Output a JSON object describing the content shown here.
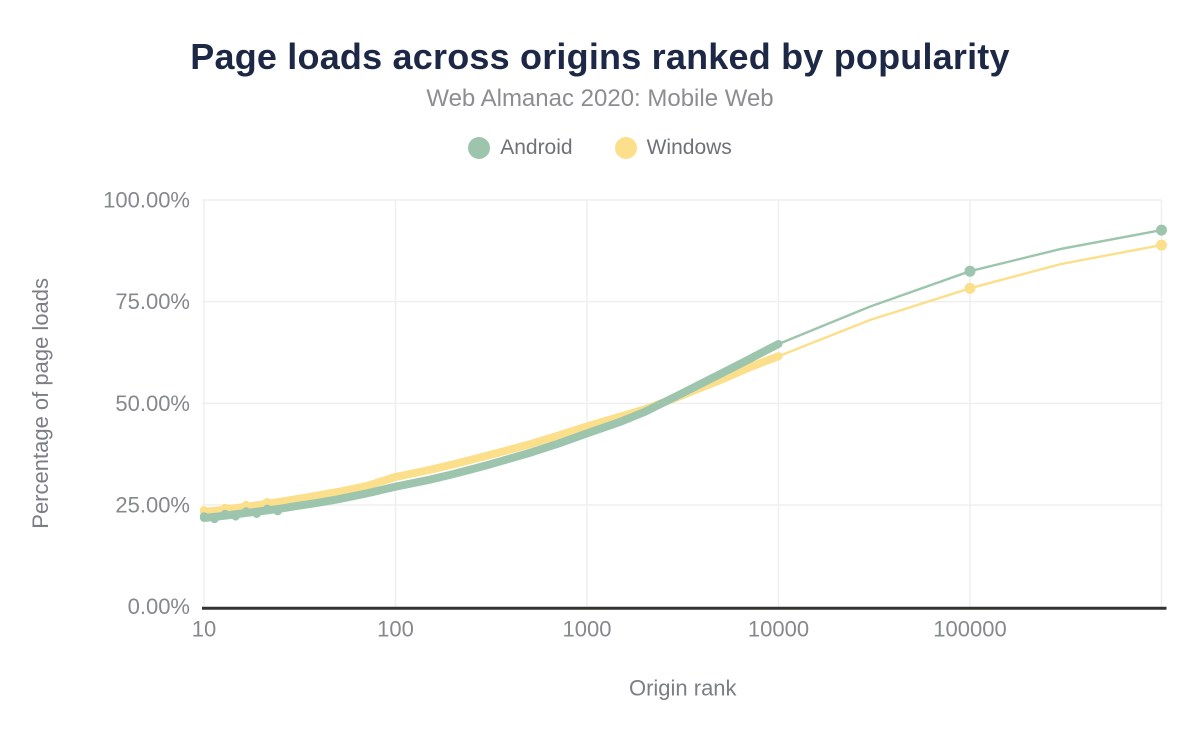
{
  "header": {
    "title": "Page loads across origins ranked by popularity",
    "subtitle": "Web Almanac 2020: Mobile Web"
  },
  "legend": {
    "items": [
      {
        "label": "Android",
        "color": "#9dc5ae"
      },
      {
        "label": "Windows",
        "color": "#fbdf8b"
      }
    ]
  },
  "colors": {
    "title": "#1c2845",
    "subtitle": "#8b8d90",
    "tick_label": "#85888c",
    "axis_title": "#7b7e84",
    "gridline": "#efefef",
    "axis_line": "#333333",
    "android": "#9dc5ae",
    "windows": "#fbdf8b"
  },
  "chart_data": {
    "type": "line",
    "title": "Page loads across origins ranked by popularity",
    "subtitle": "Web Almanac 2020: Mobile Web",
    "xlabel": "Origin rank",
    "ylabel": "Percentage of page loads",
    "x_scale": "log",
    "xlim": [
      10,
      1000000
    ],
    "ylim": [
      0,
      100
    ],
    "grid": true,
    "legend_position": "top",
    "x_ticks": [
      {
        "value": 10,
        "label": "10"
      },
      {
        "value": 100,
        "label": "100"
      },
      {
        "value": 1000,
        "label": "1000"
      },
      {
        "value": 10000,
        "label": "10000"
      },
      {
        "value": 100000,
        "label": "100000"
      }
    ],
    "y_ticks": [
      {
        "value": 0,
        "label": "0.00%"
      },
      {
        "value": 25,
        "label": "25.00%"
      },
      {
        "value": 50,
        "label": "50.00%"
      },
      {
        "value": 75,
        "label": "75.00%"
      },
      {
        "value": 100,
        "label": "100.00%"
      }
    ],
    "series": [
      {
        "name": "Windows",
        "color": "#fbdf8b",
        "thick_max_rank": 10000,
        "marker_ranks": [
          100000,
          1000000
        ],
        "points": [
          [
            10,
            23.3
          ],
          [
            12,
            23.7
          ],
          [
            15,
            24.3
          ],
          [
            20,
            25.1
          ],
          [
            25,
            25.8
          ],
          [
            30,
            26.4
          ],
          [
            40,
            27.4
          ],
          [
            50,
            28.2
          ],
          [
            70,
            29.6
          ],
          [
            100,
            31.9
          ],
          [
            150,
            33.6
          ],
          [
            200,
            35.0
          ],
          [
            300,
            37.1
          ],
          [
            500,
            39.9
          ],
          [
            700,
            42.0
          ],
          [
            1000,
            44.3
          ],
          [
            1500,
            46.8
          ],
          [
            2000,
            48.5
          ],
          [
            3000,
            51.6
          ],
          [
            5000,
            55.8
          ],
          [
            7000,
            58.8
          ],
          [
            10000,
            61.6
          ],
          [
            30000,
            70.5
          ],
          [
            100000,
            78.3
          ],
          [
            300000,
            84.3
          ],
          [
            1000000,
            88.9
          ]
        ]
      },
      {
        "name": "Android",
        "color": "#9dc5ae",
        "thick_max_rank": 10000,
        "marker_ranks": [
          100000,
          1000000
        ],
        "points": [
          [
            10,
            21.8
          ],
          [
            12,
            22.2
          ],
          [
            15,
            22.8
          ],
          [
            20,
            23.5
          ],
          [
            25,
            24.1
          ],
          [
            30,
            24.7
          ],
          [
            40,
            25.6
          ],
          [
            50,
            26.4
          ],
          [
            70,
            27.8
          ],
          [
            100,
            29.5
          ],
          [
            150,
            31.2
          ],
          [
            200,
            32.6
          ],
          [
            300,
            34.8
          ],
          [
            500,
            37.8
          ],
          [
            700,
            40.0
          ],
          [
            1000,
            42.6
          ],
          [
            1500,
            45.5
          ],
          [
            2000,
            47.9
          ],
          [
            3000,
            52.0
          ],
          [
            5000,
            57.3
          ],
          [
            7000,
            60.8
          ],
          [
            10000,
            64.6
          ],
          [
            30000,
            73.8
          ],
          [
            100000,
            82.5
          ],
          [
            300000,
            88.0
          ],
          [
            1000000,
            92.6
          ]
        ]
      }
    ]
  }
}
